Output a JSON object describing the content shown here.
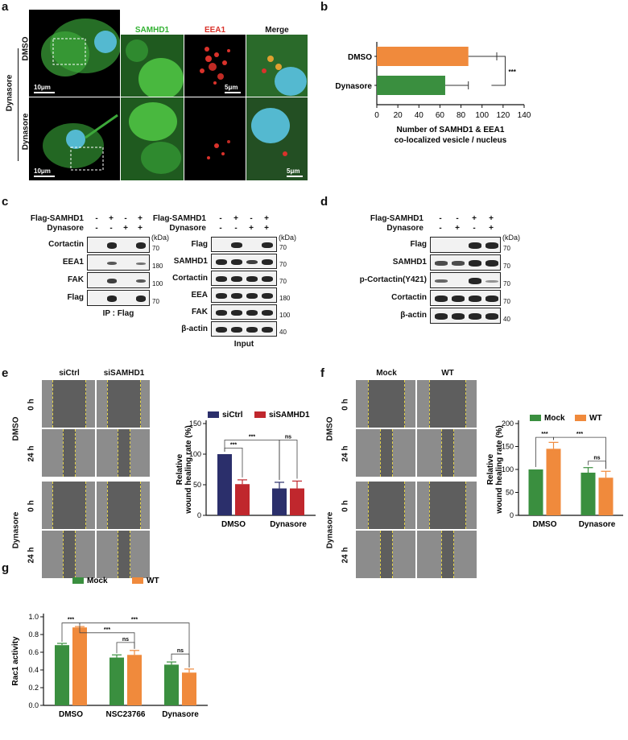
{
  "panels": {
    "a": {
      "label": "a",
      "channels": [
        "SAMHD1",
        "EEA1",
        "Merge"
      ],
      "rows": [
        "DMSO",
        "Dynasore"
      ],
      "group_label": "Dynasore",
      "scale_large": "10μm",
      "scale_small": "5μm"
    },
    "b": {
      "label": "b"
    },
    "c": {
      "label": "c",
      "ip": {
        "conditions": [
          {
            "name": "Flag-SAMHD1",
            "signs": [
              "-",
              "+",
              "-",
              "+"
            ]
          },
          {
            "name": "Dynasore",
            "signs": [
              "-",
              "-",
              "+",
              "+"
            ]
          }
        ],
        "rows": [
          "Cortactin",
          "EEA1",
          "FAK",
          "Flag"
        ],
        "markers": [
          "70",
          "180",
          "100",
          "70"
        ],
        "kda": "(kDa)",
        "caption": "IP : Flag"
      },
      "input": {
        "conditions": [
          {
            "name": "Flag-SAMHD1",
            "signs": [
              "-",
              "+",
              "-",
              "+"
            ]
          },
          {
            "name": "Dynasore",
            "signs": [
              "-",
              "-",
              "+",
              "+"
            ]
          }
        ],
        "rows": [
          "Flag",
          "SAMHD1",
          "Cortactin",
          "EEA",
          "FAK",
          "β-actin"
        ],
        "markers": [
          "70",
          "70",
          "70",
          "180",
          "100",
          "40"
        ],
        "kda": "(kDa)",
        "caption": "Input"
      }
    },
    "d": {
      "label": "d",
      "conditions": [
        {
          "name": "Flag-SAMHD1",
          "signs": [
            "-",
            "-",
            "+",
            "+"
          ]
        },
        {
          "name": "Dynasore",
          "signs": [
            "-",
            "+",
            "-",
            "+"
          ]
        }
      ],
      "rows": [
        "Flag",
        "SAMHD1",
        "p-Cortactin(Y421)",
        "Cortactin",
        "β-actin"
      ],
      "markers": [
        "70",
        "70",
        "70",
        "70",
        "40"
      ],
      "kda": "(kDa)"
    },
    "e": {
      "label": "e",
      "columns": [
        "siCtrl",
        "siSAMHD1"
      ],
      "treatments": [
        "DMSO",
        "Dynasore"
      ],
      "times": [
        "0 h",
        "24 h"
      ]
    },
    "f": {
      "label": "f",
      "columns": [
        "Mock",
        "WT"
      ],
      "treatments": [
        "DMSO",
        "Dynasore"
      ],
      "times": [
        "0 h",
        "24 h"
      ]
    },
    "g": {
      "label": "g"
    }
  },
  "chart_data": [
    {
      "id": "b",
      "type": "bar",
      "orientation": "horizontal",
      "categories": [
        "DMSO",
        "Dynasore"
      ],
      "values": [
        87,
        65
      ],
      "errors": [
        27,
        22
      ],
      "colors": [
        "#f08a3c",
        "#3a8f3f"
      ],
      "xlabel": "Number of SAMHD1 & EEA1 co-localized vesicle / nucleus",
      "xticks": [
        0,
        20,
        40,
        60,
        80,
        100,
        120,
        140
      ],
      "xlim": [
        0,
        140
      ],
      "annotations": [
        "***"
      ]
    },
    {
      "id": "e",
      "type": "bar",
      "categories": [
        "DMSO",
        "Dynasore"
      ],
      "series": [
        {
          "name": "siCtrl",
          "values": [
            100,
            44
          ],
          "errors": [
            0,
            10
          ],
          "color": "#2b2f6b"
        },
        {
          "name": "siSAMHD1",
          "values": [
            51,
            44
          ],
          "errors": [
            7,
            12
          ],
          "color": "#c0272d"
        }
      ],
      "ylabel": "Relative wound healing rate (%)",
      "yticks": [
        0,
        50,
        100,
        150
      ],
      "ylim": [
        0,
        150
      ],
      "legend": "top",
      "annotations": [
        "***",
        "***",
        "ns"
      ]
    },
    {
      "id": "f",
      "type": "bar",
      "categories": [
        "DMSO",
        "Dynasore"
      ],
      "series": [
        {
          "name": "Mock",
          "values": [
            100,
            93
          ],
          "errors": [
            0,
            11
          ],
          "color": "#3a8f3f"
        },
        {
          "name": "WT",
          "values": [
            145,
            82
          ],
          "errors": [
            14,
            14
          ],
          "color": "#f08a3c"
        }
      ],
      "ylabel": "Relative wound healing rate (%)",
      "yticks": [
        0,
        50,
        100,
        150,
        200
      ],
      "ylim": [
        0,
        200
      ],
      "legend": "top",
      "annotations": [
        "***",
        "***",
        "ns"
      ]
    },
    {
      "id": "g",
      "type": "bar",
      "categories": [
        "DMSO",
        "NSC23766",
        "Dynasore"
      ],
      "series": [
        {
          "name": "Mock",
          "values": [
            0.68,
            0.54,
            0.46
          ],
          "errors": [
            0.02,
            0.03,
            0.03
          ],
          "color": "#3a8f3f"
        },
        {
          "name": "WT",
          "values": [
            0.88,
            0.57,
            0.37
          ],
          "errors": [
            0.01,
            0.05,
            0.04
          ],
          "color": "#f08a3c"
        }
      ],
      "ylabel": "Rac1 activity",
      "yticks": [
        0.0,
        0.2,
        0.4,
        0.6,
        0.8,
        1.0
      ],
      "ylim": [
        0,
        1.0
      ],
      "legend": "top",
      "annotations": [
        "***",
        "***",
        "***",
        "ns",
        "ns"
      ]
    }
  ]
}
